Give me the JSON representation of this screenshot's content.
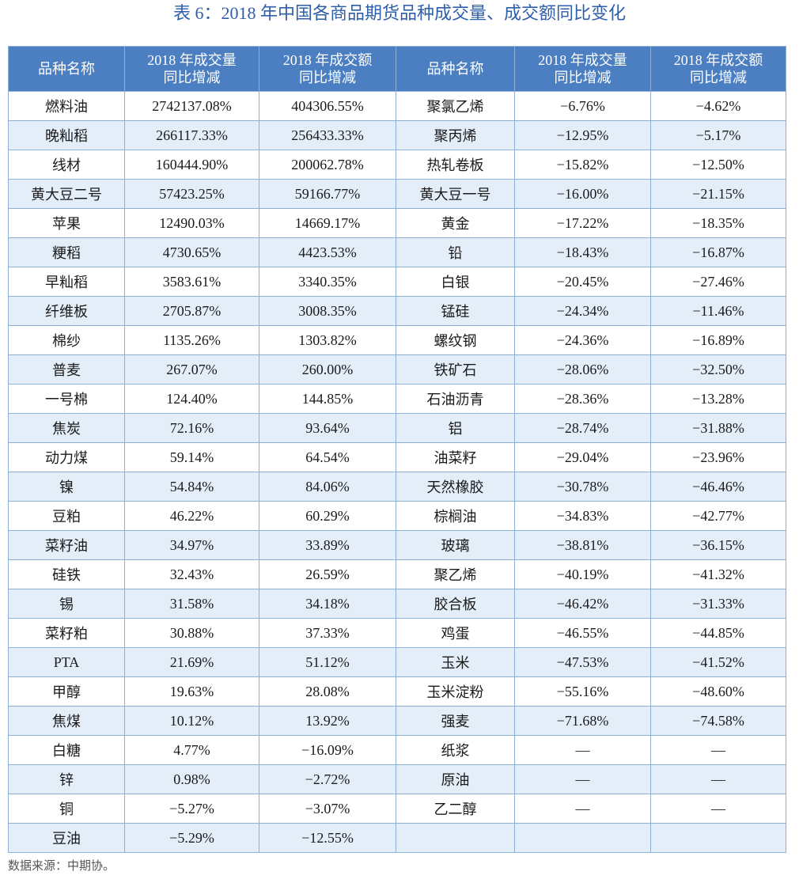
{
  "title": "表 6：2018 年中国各商品期货品种成交量、成交额同比变化",
  "table": {
    "header": [
      "品种名称",
      [
        "2018 年成交量",
        "同比增减"
      ],
      [
        "2018 年成交额",
        "同比增减"
      ],
      "品种名称",
      [
        "2018 年成交量",
        "同比增减"
      ],
      [
        "2018 年成交额",
        "同比增减"
      ]
    ],
    "rows": [
      [
        "燃料油",
        "2742137.08%",
        "404306.55%",
        "聚氯乙烯",
        "−6.76%",
        "−4.62%"
      ],
      [
        "晚籼稻",
        "266117.33%",
        "256433.33%",
        "聚丙烯",
        "−12.95%",
        "−5.17%"
      ],
      [
        "线材",
        "160444.90%",
        "200062.78%",
        "热轧卷板",
        "−15.82%",
        "−12.50%"
      ],
      [
        "黄大豆二号",
        "57423.25%",
        "59166.77%",
        "黄大豆一号",
        "−16.00%",
        "−21.15%"
      ],
      [
        "苹果",
        "12490.03%",
        "14669.17%",
        "黄金",
        "−17.22%",
        "−18.35%"
      ],
      [
        "粳稻",
        "4730.65%",
        "4423.53%",
        "铅",
        "−18.43%",
        "−16.87%"
      ],
      [
        "早籼稻",
        "3583.61%",
        "3340.35%",
        "白银",
        "−20.45%",
        "−27.46%"
      ],
      [
        "纤维板",
        "2705.87%",
        "3008.35%",
        "锰硅",
        "−24.34%",
        "−11.46%"
      ],
      [
        "棉纱",
        "1135.26%",
        "1303.82%",
        "螺纹钢",
        "−24.36%",
        "−16.89%"
      ],
      [
        "普麦",
        "267.07%",
        "260.00%",
        "铁矿石",
        "−28.06%",
        "−32.50%"
      ],
      [
        "一号棉",
        "124.40%",
        "144.85%",
        "石油沥青",
        "−28.36%",
        "−13.28%"
      ],
      [
        "焦炭",
        "72.16%",
        "93.64%",
        "铝",
        "−28.74%",
        "−31.88%"
      ],
      [
        "动力煤",
        "59.14%",
        "64.54%",
        "油菜籽",
        "−29.04%",
        "−23.96%"
      ],
      [
        "镍",
        "54.84%",
        "84.06%",
        "天然橡胶",
        "−30.78%",
        "−46.46%"
      ],
      [
        "豆粕",
        "46.22%",
        "60.29%",
        "棕榈油",
        "−34.83%",
        "−42.77%"
      ],
      [
        "菜籽油",
        "34.97%",
        "33.89%",
        "玻璃",
        "−38.81%",
        "−36.15%"
      ],
      [
        "硅铁",
        "32.43%",
        "26.59%",
        "聚乙烯",
        "−40.19%",
        "−41.32%"
      ],
      [
        "锡",
        "31.58%",
        "34.18%",
        "胶合板",
        "−46.42%",
        "−31.33%"
      ],
      [
        "菜籽粕",
        "30.88%",
        "37.33%",
        "鸡蛋",
        "−46.55%",
        "−44.85%"
      ],
      [
        "PTA",
        "21.69%",
        "51.12%",
        "玉米",
        "−47.53%",
        "−41.52%"
      ],
      [
        "甲醇",
        "19.63%",
        "28.08%",
        "玉米淀粉",
        "−55.16%",
        "−48.60%"
      ],
      [
        "焦煤",
        "10.12%",
        "13.92%",
        "强麦",
        "−71.68%",
        "−74.58%"
      ],
      [
        "白糖",
        "4.77%",
        "−16.09%",
        "纸浆",
        "—",
        "—"
      ],
      [
        "锌",
        "0.98%",
        "−2.72%",
        "原油",
        "—",
        "—"
      ],
      [
        "铜",
        "−5.27%",
        "−3.07%",
        "乙二醇",
        "—",
        "—"
      ],
      [
        "豆油",
        "−5.29%",
        "−12.55%"
      ]
    ]
  },
  "source": "数据来源：中期协。"
}
